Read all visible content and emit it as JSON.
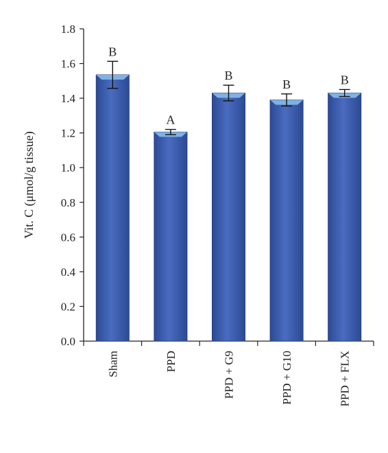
{
  "chart_data": {
    "type": "bar",
    "title": "",
    "xlabel": "",
    "ylabel": "Vit. C (μmol/g tissue)",
    "ylim": [
      0,
      1.8
    ],
    "yticks": [
      "0.0",
      "0.2",
      "0.4",
      "0.6",
      "0.8",
      "1.0",
      "1.2",
      "1.4",
      "1.6",
      "1.8"
    ],
    "categories": [
      "Sham",
      "PPD",
      "PPD + G9",
      "PPD + G10",
      "PPD + FLX"
    ],
    "values": [
      1.535,
      1.205,
      1.43,
      1.39,
      1.43
    ],
    "errors": [
      0.078,
      0.015,
      0.045,
      0.035,
      0.02
    ],
    "significance_labels": [
      "B",
      "A",
      "B",
      "B",
      "B"
    ],
    "bar_color": "#3f5faa",
    "bar_edge_color": "#2a3f80",
    "bar_top_color": "#7fb2e0",
    "grid": false,
    "legend": "none"
  }
}
